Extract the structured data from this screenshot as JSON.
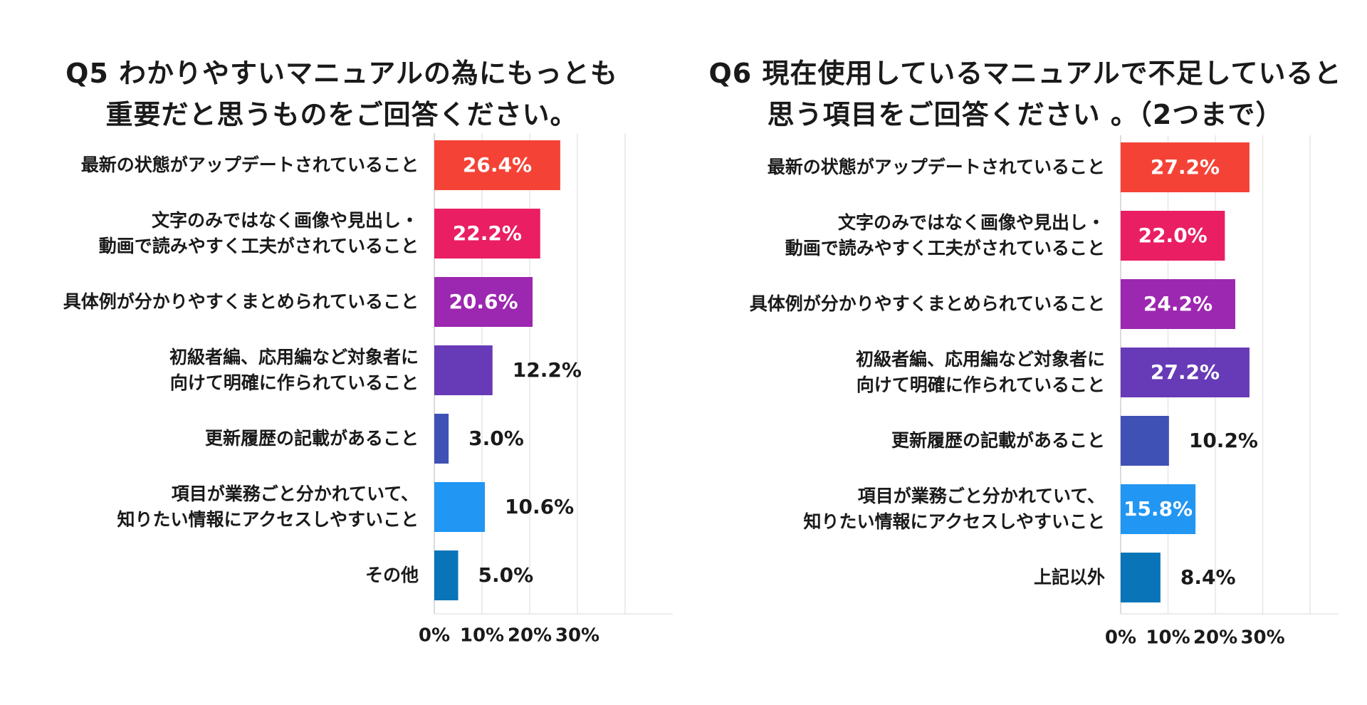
{
  "chart_data": [
    {
      "type": "bar",
      "orientation": "horizontal",
      "title": "Q5 わかりやすいマニュアルの為にもっとも\n重要だと思うものをご回答ください。",
      "categories": [
        "最新の状態がアップデートされていること",
        "文字のみではなく画像や見出し・\n動画で読みやすく工夫がされていること",
        "具体例が分かりやすくまとめられていること",
        "初級者編、応用編など対象者に\n向けて明確に作られていること",
        "更新履歴の記載があること",
        "項目が業務ごと分かれていて、\n知りたい情報にアクセスしやすいこと",
        "その他"
      ],
      "values": [
        26.4,
        22.2,
        20.6,
        12.2,
        3.0,
        10.6,
        5.0
      ],
      "value_labels": [
        "26.4%",
        "22.2%",
        "20.6%",
        "12.2%",
        "3.0%",
        "10.6%",
        "5.0%"
      ],
      "colors": [
        "#f44336",
        "#e91e63",
        "#9c27b0",
        "#673ab7",
        "#3f51b5",
        "#2196f3",
        "#0a74b8"
      ],
      "xticks": [
        0,
        10,
        20,
        30
      ],
      "xtick_labels": [
        "0%",
        "10%",
        "20%",
        "30%"
      ],
      "xlim": [
        0,
        50
      ],
      "grid": true
    },
    {
      "type": "bar",
      "orientation": "horizontal",
      "title": "Q6 現在使用しているマニュアルで不足していると\n思う項目をご回答ください 。（2つまで）",
      "categories": [
        "最新の状態がアップデートされていること",
        "文字のみではなく画像や見出し・\n動画で読みやすく工夫がされていること",
        "具体例が分かりやすくまとめられていること",
        "初級者編、応用編など対象者に\n向けて明確に作られていること",
        "更新履歴の記載があること",
        "項目が業務ごと分かれていて、\n知りたい情報にアクセスしやすいこと",
        "上記以外"
      ],
      "values": [
        27.2,
        22.0,
        24.2,
        27.2,
        10.2,
        15.8,
        8.4
      ],
      "value_labels": [
        "27.2%",
        "22.0%",
        "24.2%",
        "27.2%",
        "10.2%",
        "15.8%",
        "8.4%"
      ],
      "colors": [
        "#f44336",
        "#e91e63",
        "#9c27b0",
        "#673ab7",
        "#3f51b5",
        "#2196f3",
        "#0a74b8"
      ],
      "xticks": [
        0,
        10,
        20,
        30
      ],
      "xtick_labels": [
        "0%",
        "10%",
        "20%",
        "30%"
      ],
      "xlim": [
        0,
        46
      ],
      "grid": true
    }
  ]
}
